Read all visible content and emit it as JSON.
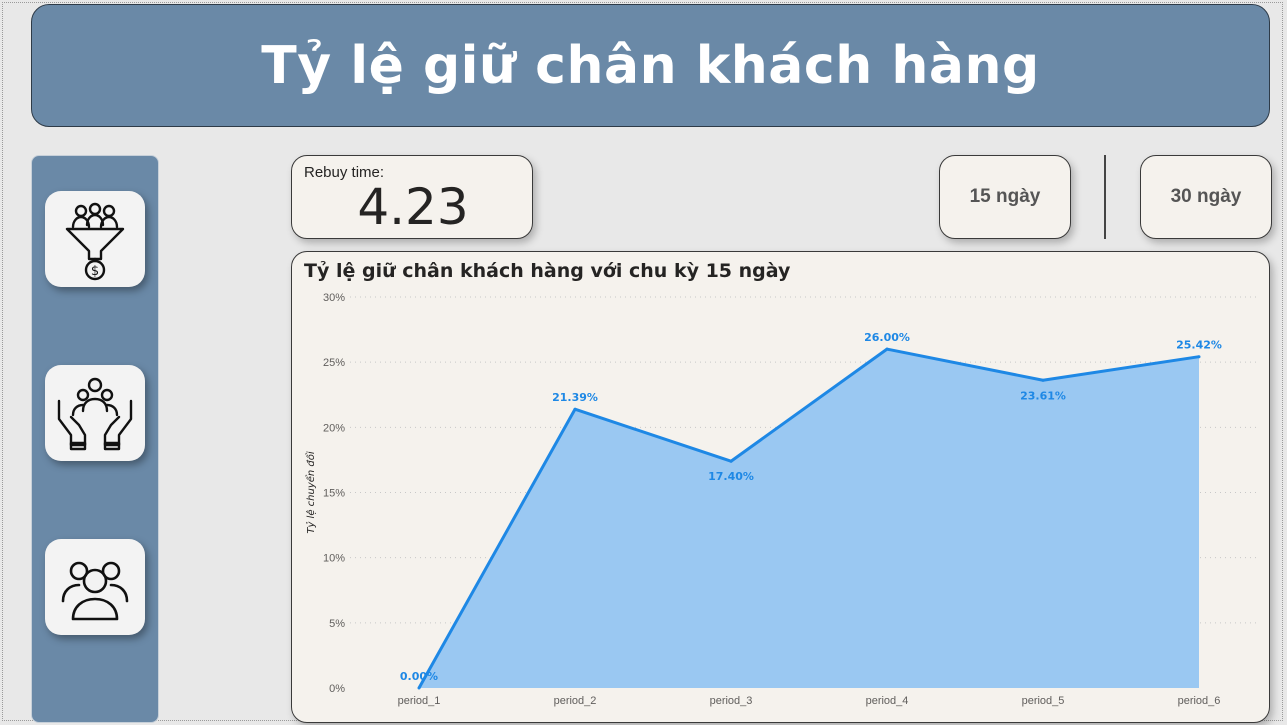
{
  "header": {
    "title": "Tỷ lệ giữ chân khách hàng"
  },
  "sidebar": {
    "items": [
      {
        "icon": "sales-funnel-icon"
      },
      {
        "icon": "customer-care-icon"
      },
      {
        "icon": "customer-group-icon"
      }
    ]
  },
  "kpi": {
    "label": "Rebuy time:",
    "value": "4.23"
  },
  "filters": [
    {
      "label": "15 ngày"
    },
    {
      "label": "30 ngày"
    }
  ],
  "chart_data": {
    "type": "area",
    "title": "Tỷ lệ giữ chân khách hàng với chu kỳ 15 ngày",
    "xlabel": "",
    "ylabel": "Tỷ lệ chuyển đổi",
    "categories": [
      "period_1",
      "period_2",
      "period_3",
      "period_4",
      "period_5",
      "period_6"
    ],
    "values": [
      0.0,
      21.39,
      17.4,
      26.0,
      23.61,
      25.42
    ],
    "data_labels": [
      "0.00%",
      "21.39%",
      "17.40%",
      "26.00%",
      "23.61%",
      "25.42%"
    ],
    "y_ticks": [
      "0%",
      "5%",
      "10%",
      "15%",
      "20%",
      "25%",
      "30%"
    ],
    "ylim": [
      0,
      30
    ],
    "grid": true,
    "colors": {
      "line": "#1e88e5",
      "fill": "#9ac8f2",
      "label": "#1e88e5"
    }
  }
}
